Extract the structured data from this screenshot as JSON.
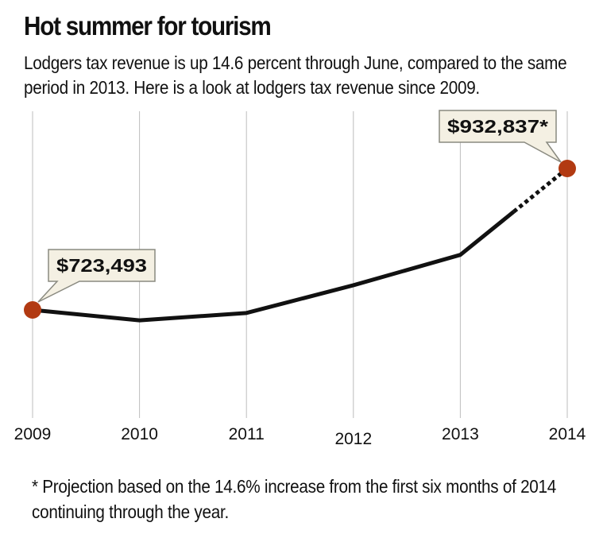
{
  "chart_data": {
    "type": "line",
    "title": "Hot summer for tourism",
    "subtitle": "Lodgers tax revenue is up 14.6 percent through June, compared to the same period in 2013. Here is a look at lodgers tax revenue since 2009.",
    "x": [
      "2009",
      "2010",
      "2011",
      "2012",
      "2013",
      "2014"
    ],
    "series": [
      {
        "values": [
          723493,
          708000,
          719000,
          760000,
          805000,
          932837
        ],
        "projected_from_index": 4
      }
    ],
    "callouts": [
      {
        "index": 0,
        "label": "$723,493"
      },
      {
        "index": 5,
        "label": "$932,837*"
      }
    ],
    "footnote": "* Projection based on the 14.6% increase from the first six months of 2014 continuing through the year.",
    "ylim": [
      600000,
      960000
    ],
    "grid": "vertical",
    "colors": {
      "line": "#111111",
      "endpoint": "#b23a12",
      "callout_fill": "#f4f0e3",
      "callout_border": "#8a8a80",
      "gridline": "#bdbdbd"
    }
  }
}
